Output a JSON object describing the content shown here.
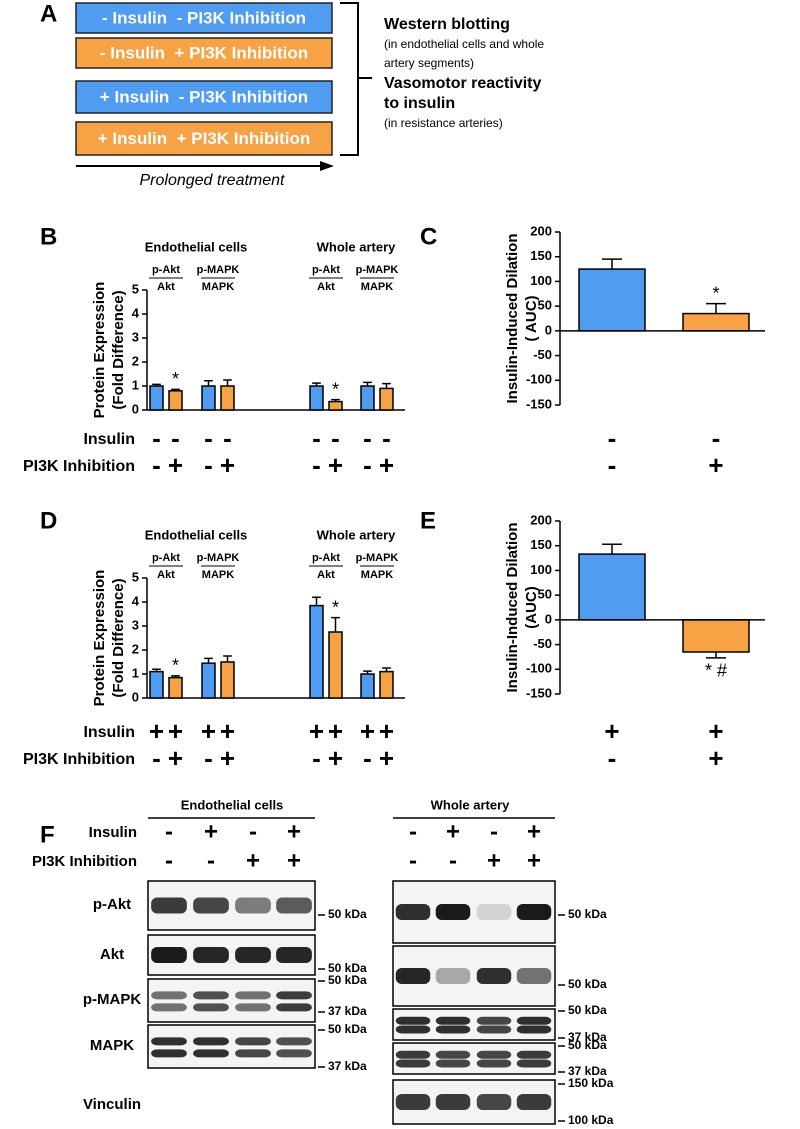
{
  "panel_a": {
    "label": "A",
    "boxes": [
      {
        "text": "- Insulin  - PI3K Inhibition",
        "color": "#4f9cf0"
      },
      {
        "text": "- Insulin  + PI3K Inhibition",
        "color": "#f6a245"
      },
      {
        "text": "+ Insulin  - PI3K Inhibition",
        "color": "#4f9cf0"
      },
      {
        "text": "+ Insulin  + PI3K Inhibition",
        "color": "#f6a245"
      }
    ],
    "arrow_label": "Prolonged treatment",
    "outcomes": [
      {
        "title": [
          "Western blotting"
        ],
        "note": [
          "(in endothelial cells and whole",
          "artery segments)"
        ]
      },
      {
        "title": [
          "Vasomotor reactivity",
          "to insulin"
        ],
        "note": [
          "(in resistance arteries)"
        ]
      }
    ]
  },
  "chart_data": [
    {
      "type": "grouped-bar",
      "label": "B",
      "group_labels": [
        "Endothelial cells",
        "Whole artery"
      ],
      "numerators": [
        "p-Akt",
        "p-MAPK",
        "p-Akt",
        "p-MAPK"
      ],
      "denominators": [
        "Akt",
        "MAPK",
        "Akt",
        "MAPK"
      ],
      "series": [
        {
          "color": "#4f9cf0",
          "values": [
            1.0,
            1.0,
            1.0,
            1.0
          ],
          "errors": [
            0.07,
            0.22,
            0.12,
            0.15
          ],
          "annotations": [
            null,
            null,
            null,
            null
          ]
        },
        {
          "color": "#f6a245",
          "values": [
            0.8,
            1.0,
            0.35,
            0.9
          ],
          "errors": [
            0.06,
            0.25,
            0.08,
            0.2
          ],
          "annotations": [
            "*",
            null,
            "*",
            null
          ]
        }
      ],
      "ylabel": [
        "Protein Expression",
        "(Fold Difference)"
      ],
      "ylim": [
        0,
        5
      ],
      "yticks": [
        0,
        1,
        2,
        3,
        4,
        5
      ],
      "treatments": [
        {
          "label": "Insulin",
          "signs": [
            "-",
            "-",
            "-",
            "-",
            "-",
            "-",
            "-",
            "-"
          ]
        },
        {
          "label": "PI3K Inhibition",
          "signs": [
            "-",
            "+",
            "-",
            "+",
            "-",
            "+",
            "-",
            "+"
          ]
        }
      ]
    },
    {
      "type": "bar",
      "label": "C",
      "values": [
        125,
        35
      ],
      "errors": [
        20,
        20
      ],
      "colors": [
        "#4f9cf0",
        "#f6a245"
      ],
      "annotations": [
        null,
        "*"
      ],
      "ylabel": [
        "Insulin-Induced Dilation",
        "( AUC)"
      ],
      "ylim": [
        -150,
        200
      ],
      "yticks": [
        -150,
        -100,
        -50,
        0,
        50,
        100,
        150,
        200
      ],
      "treatments": [
        {
          "signs": [
            "-",
            "-"
          ]
        },
        {
          "signs": [
            "-",
            "+"
          ]
        }
      ]
    },
    {
      "type": "grouped-bar",
      "label": "D",
      "group_labels": [
        "Endothelial cells",
        "Whole artery"
      ],
      "numerators": [
        "p-Akt",
        "p-MAPK",
        "p-Akt",
        "p-MAPK"
      ],
      "denominators": [
        "Akt",
        "MAPK",
        "Akt",
        "MAPK"
      ],
      "series": [
        {
          "color": "#4f9cf0",
          "values": [
            1.1,
            1.45,
            3.85,
            1.0
          ],
          "errors": [
            0.1,
            0.2,
            0.35,
            0.12
          ],
          "annotations": [
            null,
            null,
            null,
            null
          ]
        },
        {
          "color": "#f6a245",
          "values": [
            0.85,
            1.5,
            2.75,
            1.1
          ],
          "errors": [
            0.07,
            0.25,
            0.6,
            0.15
          ],
          "annotations": [
            "*",
            null,
            "*",
            null
          ]
        }
      ],
      "ylabel": [
        "Protein Expression",
        "(Fold Difference)"
      ],
      "ylim": [
        0,
        5
      ],
      "yticks": [
        0,
        1,
        2,
        3,
        4,
        5
      ],
      "treatments": [
        {
          "label": "Insulin",
          "signs": [
            "+",
            "+",
            "+",
            "+",
            "+",
            "+",
            "+",
            "+"
          ]
        },
        {
          "label": "PI3K Inhibition",
          "signs": [
            "-",
            "+",
            "-",
            "+",
            "-",
            "+",
            "-",
            "+"
          ]
        }
      ]
    },
    {
      "type": "bar",
      "label": "E",
      "values": [
        133,
        -65
      ],
      "errors": [
        20,
        12
      ],
      "colors": [
        "#4f9cf0",
        "#f6a245"
      ],
      "annotations": [
        null,
        "* #"
      ],
      "ylabel": [
        "Insulin-Induced Dilation",
        "(AUC)"
      ],
      "ylim": [
        -150,
        200
      ],
      "yticks": [
        -150,
        -100,
        -50,
        0,
        50,
        100,
        150,
        200
      ],
      "treatments": [
        {
          "signs": [
            "+",
            "+"
          ]
        },
        {
          "signs": [
            "-",
            "+"
          ]
        }
      ]
    }
  ],
  "panel_f": {
    "label": "F",
    "blots": [
      {
        "title": "Endothelial cells",
        "treatments": [
          {
            "label": "Insulin",
            "signs": [
              "-",
              "+",
              "-",
              "+"
            ]
          },
          {
            "label": "PI3K Inhibition",
            "signs": [
              "-",
              "-",
              "+",
              "+"
            ]
          }
        ],
        "rows": [
          {
            "label": "p-Akt",
            "markers": [
              "50 kDa"
            ]
          },
          {
            "label": "Akt",
            "markers": [
              "50 kDa"
            ]
          },
          {
            "label": "p-MAPK",
            "markers": [
              "50 kDa",
              "37 kDa"
            ]
          },
          {
            "label": "MAPK",
            "markers": [
              "50 kDa",
              "37 kDa"
            ]
          },
          {
            "label": "Vinculin",
            "markers": []
          }
        ]
      },
      {
        "title": "Whole artery",
        "treatments": [
          {
            "signs": [
              "-",
              "+",
              "-",
              "+"
            ]
          },
          {
            "signs": [
              "-",
              "-",
              "+",
              "+"
            ]
          }
        ],
        "rows": [
          {
            "markers": [
              "50 kDa"
            ]
          },
          {
            "markers": [
              "50 kDa"
            ]
          },
          {
            "markers": [
              "50 kDa",
              "37 kDa"
            ]
          },
          {
            "markers": [
              "50 kDa",
              "37 kDa"
            ]
          },
          {
            "markers": [
              "150 kDa",
              "100 kDa"
            ]
          }
        ]
      }
    ]
  }
}
